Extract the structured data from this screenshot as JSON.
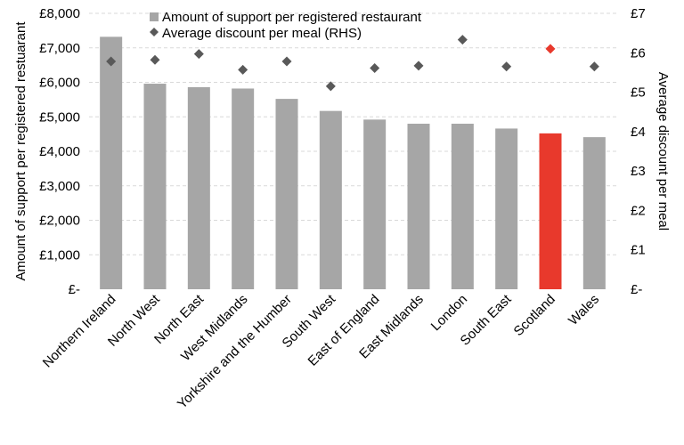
{
  "chart_data": {
    "type": "bar",
    "categories": [
      "Northern Ireland",
      "North West",
      "North East",
      "West Midlands",
      "Yorkshire and the Humber",
      "South West",
      "East of England",
      "East Midlands",
      "London",
      "South East",
      "Scotland",
      "Wales"
    ],
    "series": [
      {
        "name": "Amount of support per registered restaurant",
        "type": "bar",
        "axis": "left",
        "values": [
          7320,
          5960,
          5860,
          5820,
          5520,
          5170,
          4920,
          4800,
          4800,
          4660,
          4520,
          4410
        ],
        "color": "#a6a6a6",
        "highlight": {
          "index": 10,
          "color": "#e8392c"
        }
      },
      {
        "name": "Average discount per meal (RHS)",
        "type": "scatter",
        "marker": "diamond",
        "axis": "right",
        "values": [
          5.78,
          5.82,
          5.97,
          5.57,
          5.78,
          5.15,
          5.61,
          5.67,
          6.33,
          5.65,
          6.1,
          5.65
        ],
        "color": "#595959",
        "highlight": {
          "index": 10,
          "color": "#e8392c"
        }
      }
    ],
    "y_left": {
      "label": "Amount of support per registered restuarant",
      "range": [
        0,
        8000
      ],
      "ticks": [
        0,
        1000,
        2000,
        3000,
        4000,
        5000,
        6000,
        7000,
        8000
      ],
      "tick_labels": [
        "£-",
        "£1,000",
        "£2,000",
        "£3,000",
        "£4,000",
        "£5,000",
        "£6,000",
        "£7,000",
        "£8,000"
      ]
    },
    "y_right": {
      "label": "Average discount per meal",
      "range": [
        0,
        7
      ],
      "ticks": [
        0,
        1,
        2,
        3,
        4,
        5,
        6,
        7
      ],
      "tick_labels": [
        "£-",
        "£1",
        "£2",
        "£3",
        "£4",
        "£5",
        "£6",
        "£7"
      ]
    },
    "legend": {
      "placement": "top-center",
      "items": [
        {
          "label": "Amount of support per registered restaurant",
          "symbol": "square",
          "color": "#a6a6a6"
        },
        {
          "label": "Average discount per meal (RHS)",
          "symbol": "diamond",
          "color": "#595959"
        }
      ]
    },
    "grid": true
  }
}
